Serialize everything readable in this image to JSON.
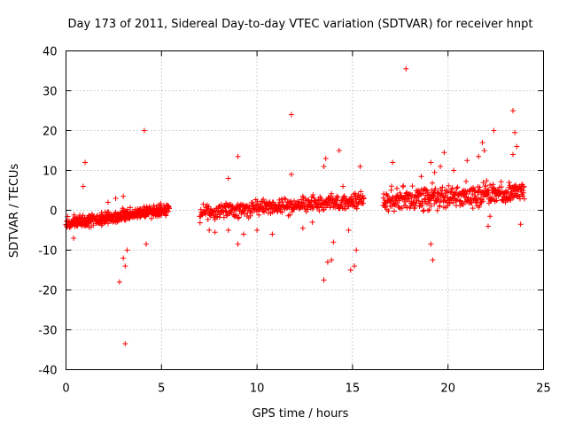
{
  "chart_data": {
    "type": "scatter",
    "title": "Day 173 of 2011, Sidereal Day-to-day VTEC variation (SDTVAR) for receiver hnpt",
    "xlabel": "GPS time / hours",
    "ylabel": "SDTVAR / TECUs",
    "xlim": [
      0,
      25
    ],
    "ylim": [
      -40,
      40
    ],
    "xticks": [
      0,
      5,
      10,
      15,
      20,
      25
    ],
    "yticks": [
      -40,
      -30,
      -20,
      -10,
      0,
      10,
      20,
      30,
      40
    ],
    "xtick_labels": [
      "0",
      "5",
      "10",
      "15",
      "20",
      "25"
    ],
    "ytick_labels": [
      "-40",
      "-30",
      "-20",
      "-10",
      "0",
      "10",
      "20",
      "30",
      "40"
    ],
    "grid": true,
    "marker": "+",
    "color": "#ff0000",
    "series": [
      {
        "name": "SDTVAR",
        "segments": [
          {
            "x_start": 0.0,
            "x_end": 5.4,
            "y_start": -3.5,
            "y_end": 0.3,
            "spread": 1.6
          },
          {
            "x_start": 7.0,
            "x_end": 15.6,
            "y_start": -0.5,
            "y_end": 2.5,
            "spread": 2.0
          },
          {
            "x_start": 16.6,
            "x_end": 24.0,
            "y_start": 2.5,
            "y_end": 4.5,
            "spread": 2.6
          }
        ],
        "outliers": [
          {
            "x": 1.0,
            "y": 12
          },
          {
            "x": 0.9,
            "y": 6
          },
          {
            "x": 0.4,
            "y": -7
          },
          {
            "x": 2.2,
            "y": 2
          },
          {
            "x": 2.6,
            "y": 3
          },
          {
            "x": 2.8,
            "y": -18
          },
          {
            "x": 3.1,
            "y": -33.5
          },
          {
            "x": 3.0,
            "y": -12
          },
          {
            "x": 3.1,
            "y": -14
          },
          {
            "x": 3.2,
            "y": -10
          },
          {
            "x": 3.0,
            "y": 3.5
          },
          {
            "x": 4.1,
            "y": 20
          },
          {
            "x": 4.2,
            "y": -8.5
          },
          {
            "x": 4.1,
            "y": 0.8
          },
          {
            "x": 7.5,
            "y": -5
          },
          {
            "x": 7.8,
            "y": -5.5
          },
          {
            "x": 8.5,
            "y": -5
          },
          {
            "x": 9.0,
            "y": 13.5
          },
          {
            "x": 9.0,
            "y": -8.5
          },
          {
            "x": 9.3,
            "y": -6
          },
          {
            "x": 8.5,
            "y": 8
          },
          {
            "x": 10.0,
            "y": -5
          },
          {
            "x": 10.8,
            "y": -6
          },
          {
            "x": 11.8,
            "y": 24
          },
          {
            "x": 11.8,
            "y": 9
          },
          {
            "x": 12.4,
            "y": -4.5
          },
          {
            "x": 12.9,
            "y": -3
          },
          {
            "x": 13.5,
            "y": -17.5
          },
          {
            "x": 13.6,
            "y": 13
          },
          {
            "x": 13.5,
            "y": 11
          },
          {
            "x": 13.7,
            "y": -13
          },
          {
            "x": 13.9,
            "y": -12.5
          },
          {
            "x": 14.0,
            "y": -8
          },
          {
            "x": 14.3,
            "y": 15
          },
          {
            "x": 14.5,
            "y": 6
          },
          {
            "x": 14.9,
            "y": -15
          },
          {
            "x": 15.1,
            "y": -14
          },
          {
            "x": 15.2,
            "y": -10
          },
          {
            "x": 15.4,
            "y": 11
          },
          {
            "x": 14.8,
            "y": -5
          },
          {
            "x": 17.1,
            "y": 12
          },
          {
            "x": 17.8,
            "y": 35.5
          },
          {
            "x": 18.6,
            "y": 8.5
          },
          {
            "x": 19.1,
            "y": 12
          },
          {
            "x": 19.2,
            "y": -12.5
          },
          {
            "x": 19.1,
            "y": -8.5
          },
          {
            "x": 19.3,
            "y": 9.5
          },
          {
            "x": 19.6,
            "y": 11
          },
          {
            "x": 19.8,
            "y": 14.5
          },
          {
            "x": 20.3,
            "y": 10
          },
          {
            "x": 21.0,
            "y": 12.5
          },
          {
            "x": 21.8,
            "y": 17
          },
          {
            "x": 22.4,
            "y": 20
          },
          {
            "x": 22.1,
            "y": -4
          },
          {
            "x": 22.2,
            "y": -1.5
          },
          {
            "x": 23.4,
            "y": 25
          },
          {
            "x": 23.5,
            "y": 19.5
          },
          {
            "x": 23.4,
            "y": 14
          },
          {
            "x": 23.6,
            "y": 16
          },
          {
            "x": 23.8,
            "y": -3.5
          },
          {
            "x": 23.2,
            "y": 7
          },
          {
            "x": 21.6,
            "y": 13.5
          },
          {
            "x": 21.9,
            "y": 15
          }
        ]
      }
    ]
  }
}
